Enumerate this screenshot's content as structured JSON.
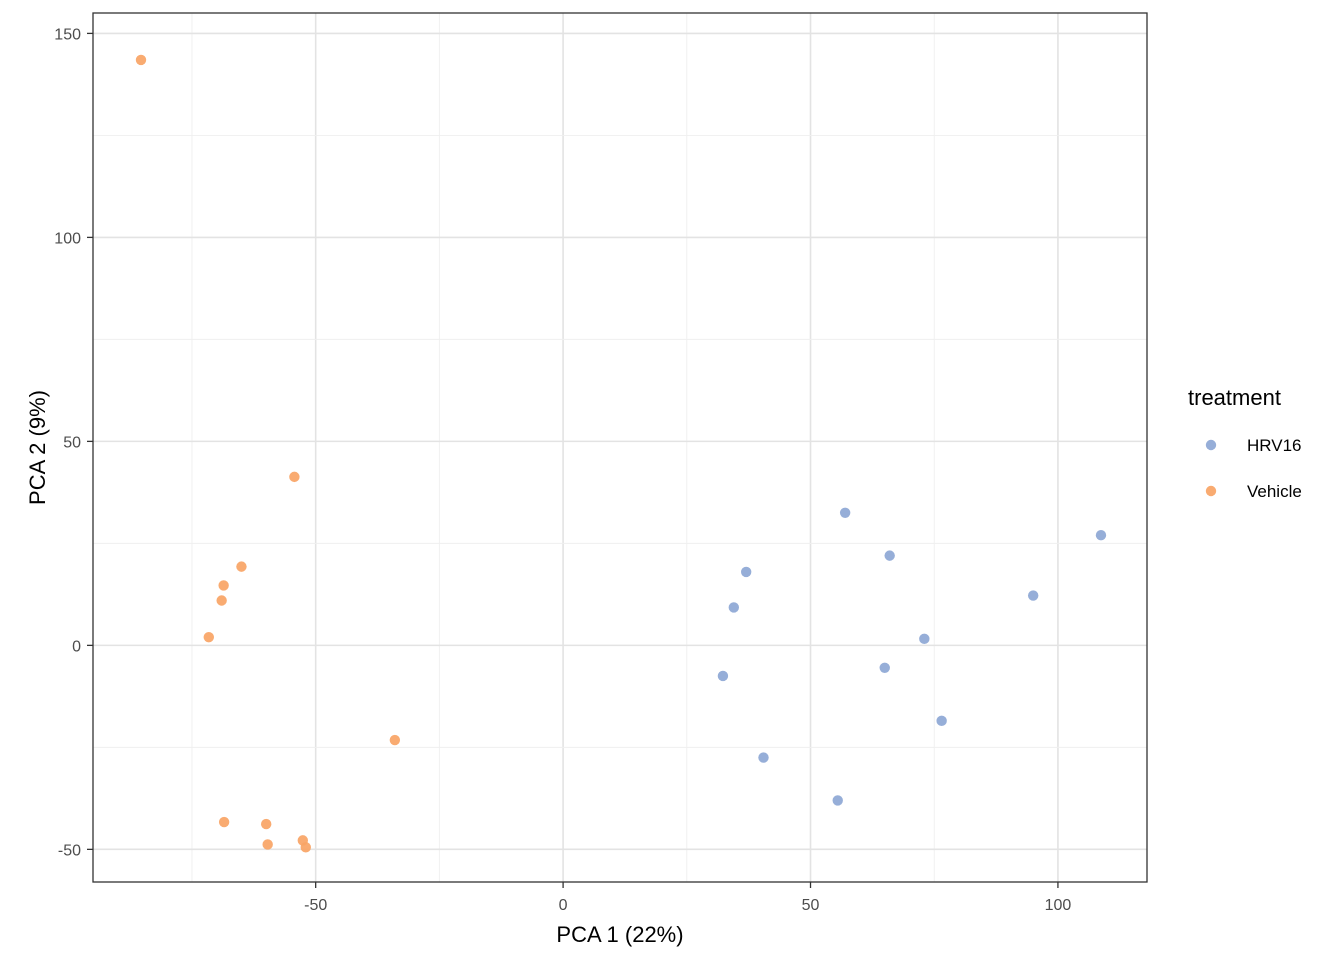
{
  "chart_data": {
    "type": "scatter",
    "xlabel": "PCA 1 (22%)",
    "ylabel": "PCA 2 (9%)",
    "xlim": [
      -95,
      118
    ],
    "ylim": [
      -58,
      155
    ],
    "x_ticks": [
      -50,
      0,
      50,
      100
    ],
    "y_ticks": [
      -50,
      0,
      50,
      100,
      150
    ],
    "x_tick_labels": [
      "-50",
      "0",
      "50",
      "100"
    ],
    "y_tick_labels": [
      "-50",
      "0",
      "50",
      "100",
      "150"
    ],
    "grid": true,
    "legend": {
      "title": "treatment",
      "position": "right",
      "entries": [
        "HRV16",
        "Vehicle"
      ]
    },
    "series": [
      {
        "name": "HRV16",
        "color": "#8DA7D5",
        "points": [
          {
            "x": 57,
            "y": 32.5
          },
          {
            "x": 66,
            "y": 22
          },
          {
            "x": 37,
            "y": 18
          },
          {
            "x": 34.5,
            "y": 9.3
          },
          {
            "x": 73,
            "y": 1.6
          },
          {
            "x": 65,
            "y": -5.5
          },
          {
            "x": 32.3,
            "y": -7.5
          },
          {
            "x": 76.5,
            "y": -18.5
          },
          {
            "x": 40.5,
            "y": -27.5
          },
          {
            "x": 55.5,
            "y": -38
          },
          {
            "x": 95,
            "y": 12.2
          },
          {
            "x": 108.7,
            "y": 27
          }
        ]
      },
      {
        "name": "Vehicle",
        "color": "#F9A465",
        "points": [
          {
            "x": -85.3,
            "y": 143.5
          },
          {
            "x": -54.3,
            "y": 41.3
          },
          {
            "x": -65,
            "y": 19.3
          },
          {
            "x": -68.6,
            "y": 14.7
          },
          {
            "x": -69,
            "y": 11
          },
          {
            "x": -71.6,
            "y": 2
          },
          {
            "x": -34,
            "y": -23.2
          },
          {
            "x": -68.5,
            "y": -43.3
          },
          {
            "x": -60,
            "y": -43.8
          },
          {
            "x": -59.7,
            "y": -48.8
          },
          {
            "x": -52.6,
            "y": -47.8
          },
          {
            "x": -52,
            "y": -49.5
          }
        ]
      }
    ]
  }
}
